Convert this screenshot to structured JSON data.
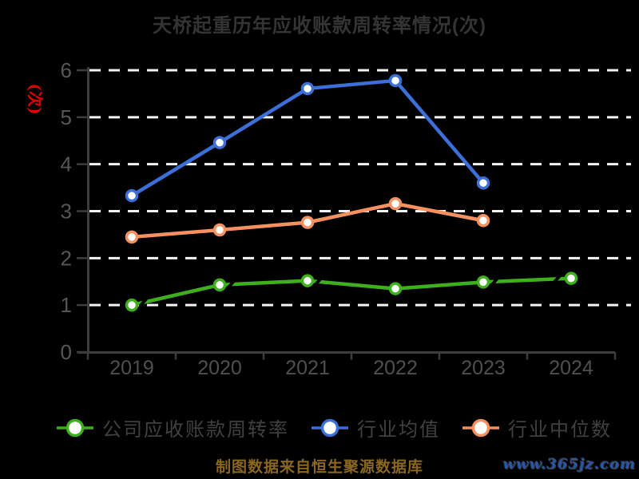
{
  "title": "天桥起重历年应收账款周转率情况(次)",
  "y_axis": {
    "unit_label": "(次)"
  },
  "footer": {
    "source_note": "制图数据来自恒生聚源数据库",
    "watermark": "www.365jz.com"
  },
  "colors": {
    "background": "#000000",
    "title_text": "#343434",
    "legend_text": "#404040",
    "source_note_text": "#8a671d",
    "watermark_text": "#2a56a8",
    "unit_label_text": "#e00000"
  },
  "chart_data": {
    "type": "line",
    "title": "天桥起重历年应收账款周转率情况(次)",
    "categories": [
      "2019",
      "2020",
      "2021",
      "2022",
      "2023",
      "2024"
    ],
    "series": [
      {
        "name": "公司应收账款周转率",
        "slug": "company-turnover",
        "color": "#3eb01e",
        "values": [
          1.0,
          1.43,
          1.52,
          1.35,
          1.49,
          1.57
        ]
      },
      {
        "name": "行业均值",
        "slug": "industry-mean",
        "color": "#3d6fd8",
        "values": [
          3.33,
          4.46,
          5.61,
          5.78,
          3.6,
          null
        ]
      },
      {
        "name": "行业中位数",
        "slug": "industry-median",
        "color": "#f5915f",
        "values": [
          2.45,
          2.6,
          2.76,
          3.16,
          2.8,
          null
        ]
      }
    ],
    "ylim": [
      0,
      6
    ],
    "yticks": [
      0,
      1,
      2,
      3,
      4,
      5,
      6
    ],
    "xlabel": "",
    "ylabel": "(次)",
    "grid": "horizontal-dashed",
    "legend_position": "bottom",
    "style": {
      "grid_color": "#f5f5f5",
      "axis_color": "#3d3d3d",
      "ytick_label_color": "#565656",
      "xtick_label_color": "#4f4f4f",
      "marker_fill": "#ffffff"
    }
  }
}
